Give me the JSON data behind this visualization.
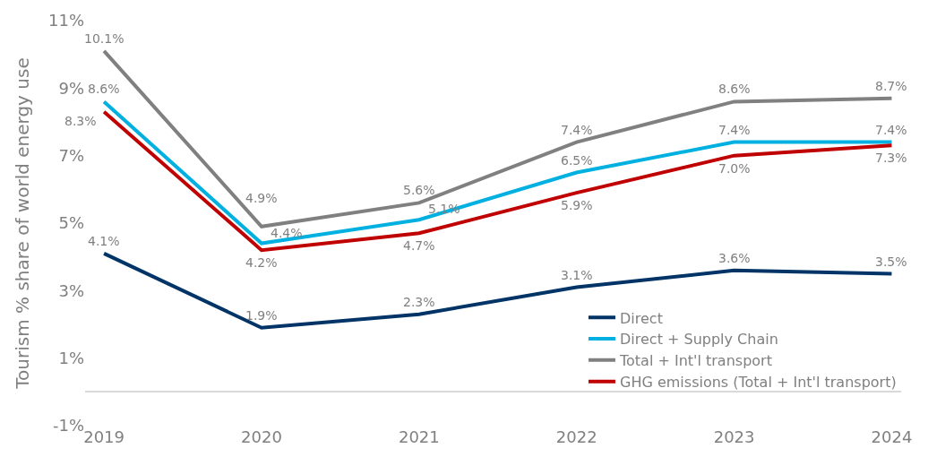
{
  "chart_data": {
    "type": "line",
    "ylabel": "Tourism % share of world energy use",
    "categories": [
      "2019",
      "2020",
      "2021",
      "2022",
      "2023",
      "2024"
    ],
    "series": [
      {
        "name": "Direct",
        "color": "#003366",
        "values": [
          4.1,
          1.9,
          2.3,
          3.1,
          3.6,
          3.5
        ],
        "value_labels": [
          "4.1%",
          "1.9%",
          "2.3%",
          "3.1%",
          "3.6%",
          "3.5%"
        ]
      },
      {
        "name": "Direct + Supply Chain",
        "color": "#00b0e0",
        "values": [
          8.6,
          4.4,
          5.1,
          6.5,
          7.4,
          7.4
        ],
        "value_labels": [
          "8.6%",
          "4.4%",
          "5.1%",
          "6.5%",
          "7.4%",
          "7.4%"
        ]
      },
      {
        "name": "Total + Int'l transport",
        "color": "#808080",
        "values": [
          10.1,
          4.9,
          5.6,
          7.4,
          8.6,
          8.7
        ],
        "value_labels": [
          "10.1%",
          "4.9%",
          "5.6%",
          "7.4%",
          "8.6%",
          "8.7%"
        ]
      },
      {
        "name": "GHG emissions (Total + Int'l transport)",
        "color": "#c00000",
        "values": [
          8.3,
          4.2,
          4.7,
          5.9,
          7.0,
          7.3
        ],
        "value_labels": [
          "8.3%",
          "4.2%",
          "4.7%",
          "5.9%",
          "7.0%",
          "7.3%"
        ]
      }
    ],
    "ylim": [
      -1,
      11
    ],
    "yticks": [
      {
        "value": -1,
        "label": "-1%"
      },
      {
        "value": 1,
        "label": "1%"
      },
      {
        "value": 3,
        "label": "3%"
      },
      {
        "value": 5,
        "label": "5%"
      },
      {
        "value": 7,
        "label": "7%"
      },
      {
        "value": 9,
        "label": "9%"
      },
      {
        "value": 11,
        "label": "11%"
      }
    ],
    "grid": false,
    "legend": "bottom right",
    "line_style": "solid",
    "marker": "none"
  }
}
